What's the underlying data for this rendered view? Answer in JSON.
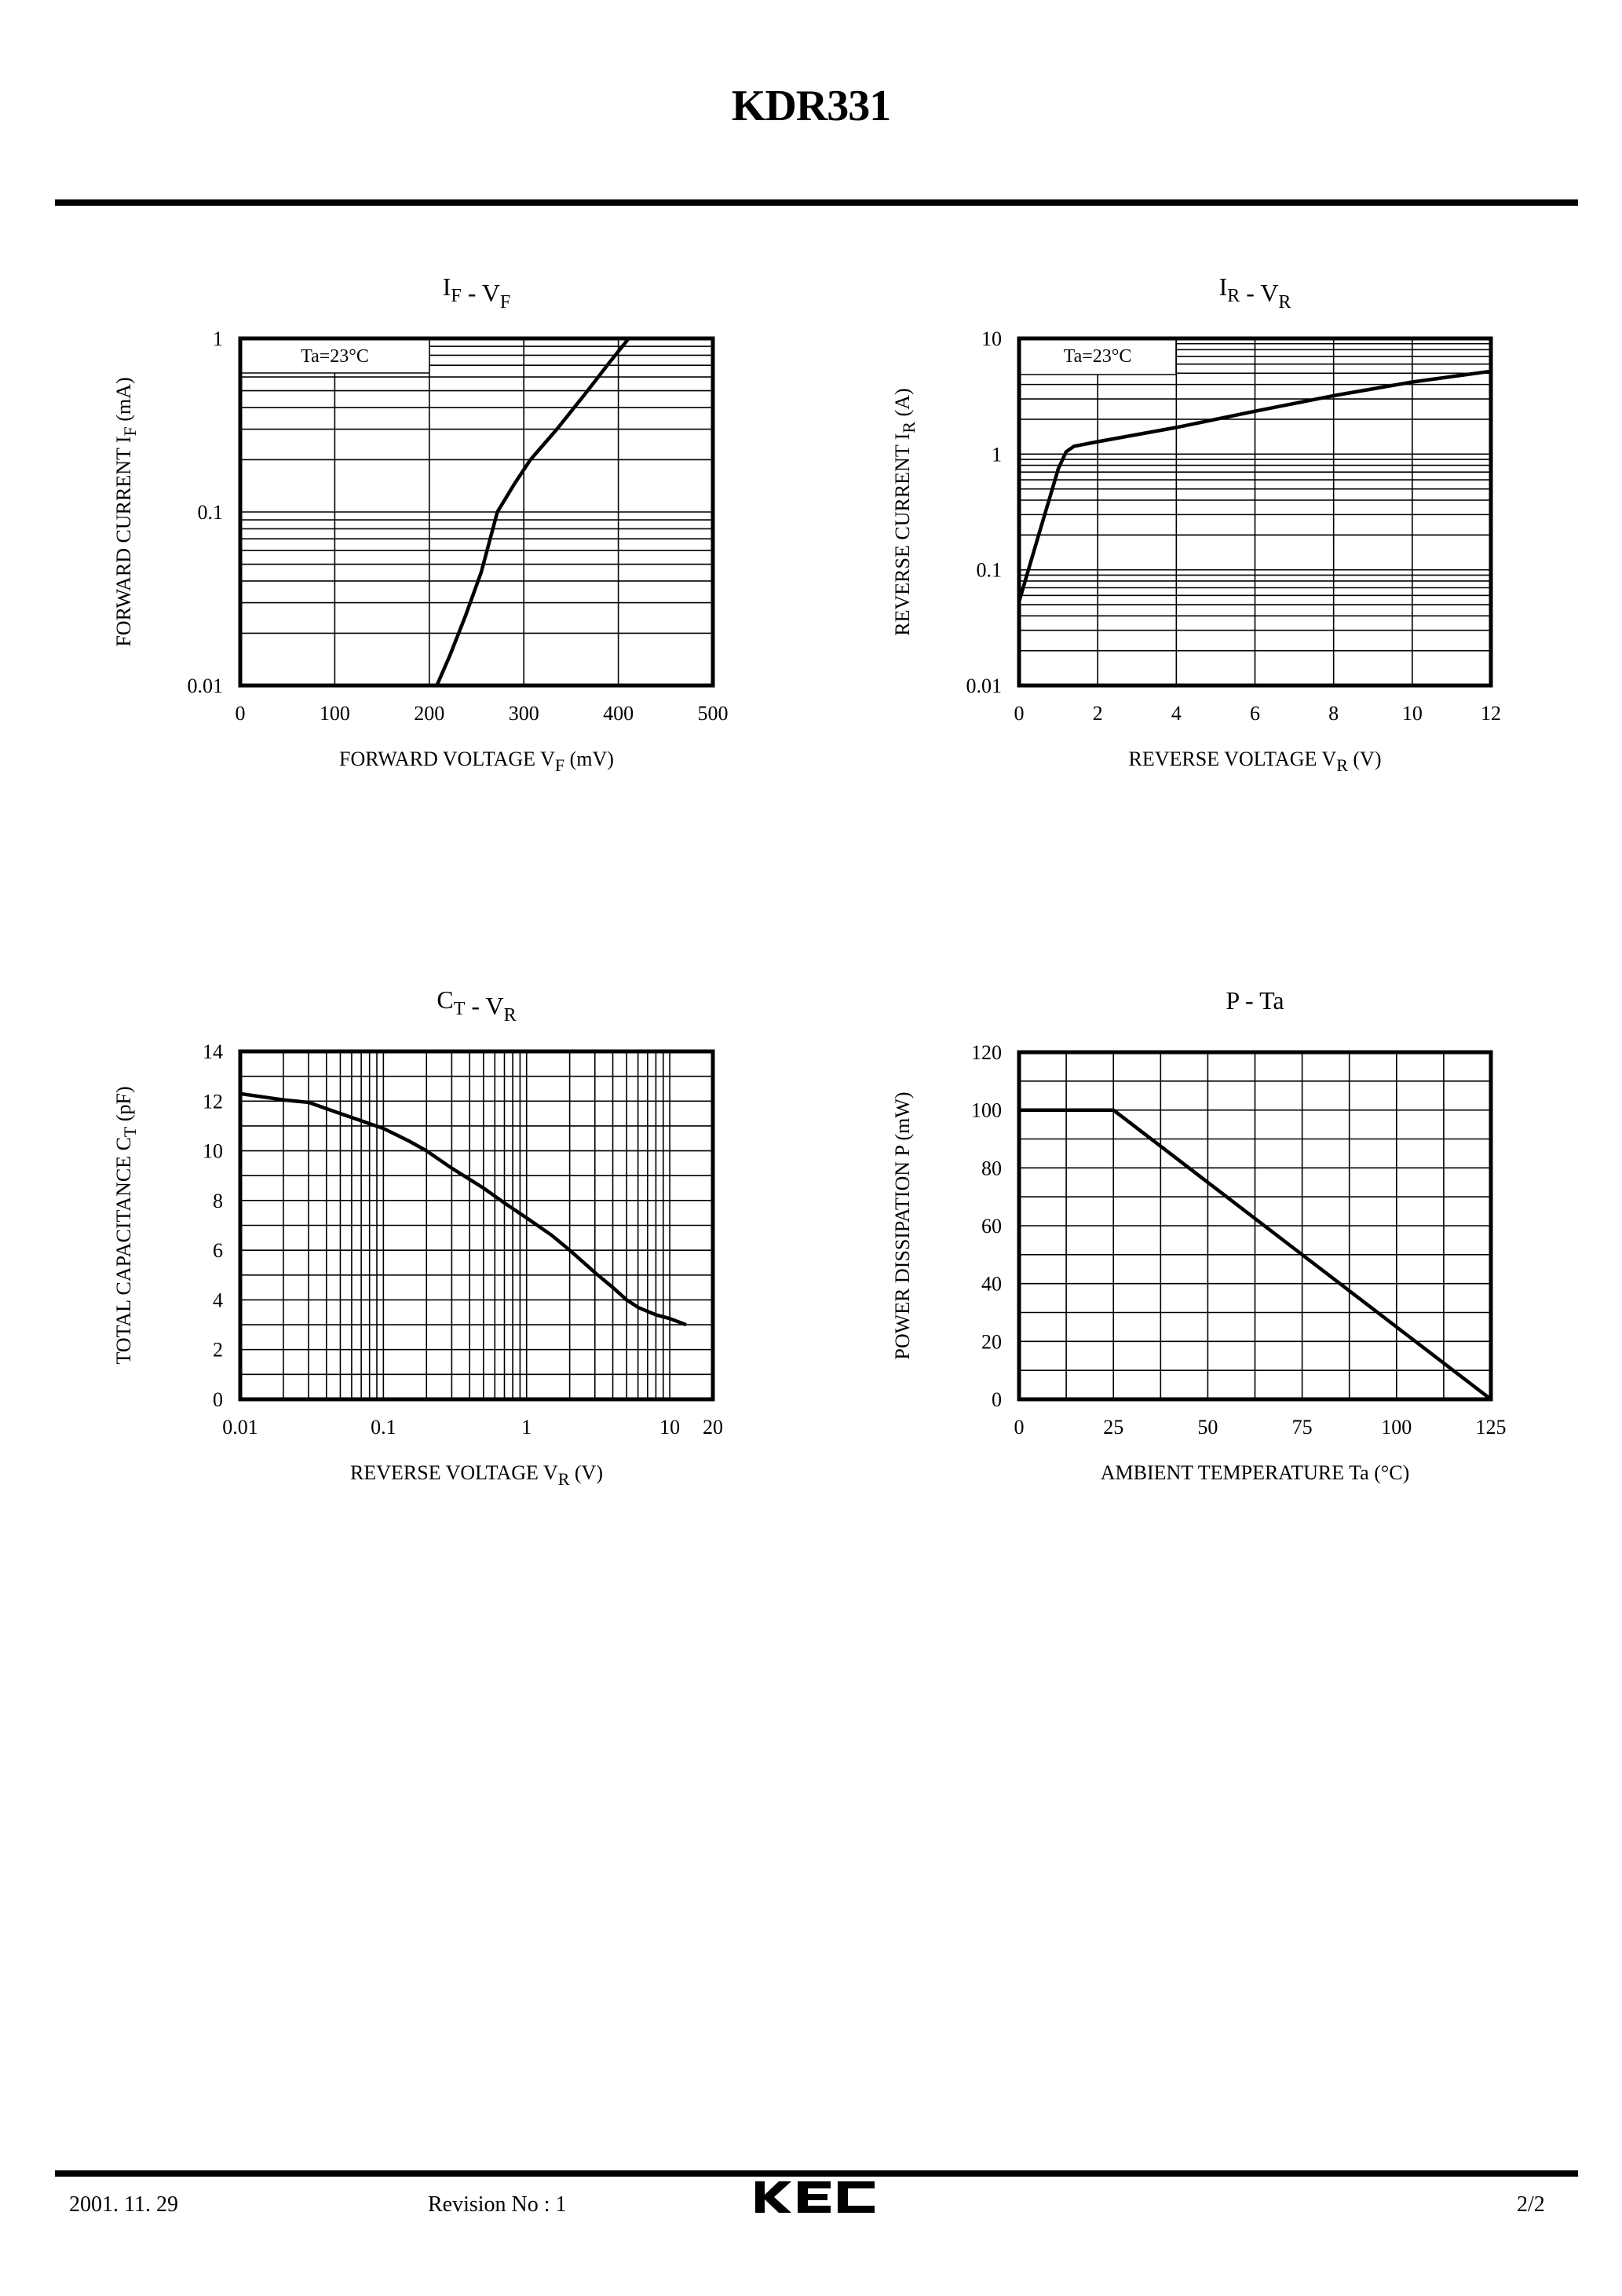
{
  "document": {
    "title": "KDR331",
    "footer": {
      "date": "2001. 11. 29",
      "revision": "Revision No : 1",
      "logo_text": "KEC",
      "page": "2/2"
    }
  },
  "chart_data": [
    {
      "id": "if-vf",
      "type": "line",
      "title": "IF - VF",
      "title_parts": {
        "main1": "I",
        "sub1": "F",
        "sep": " - ",
        "main2": "V",
        "sub2": "F"
      },
      "xlabel": "FORWARD VOLTAGE VF (mV)",
      "xlabel_parts": {
        "pre": "FORWARD VOLTAGE V",
        "sub": "F",
        "post": "  (mV)"
      },
      "ylabel": "FORWARD CURRENT IF (mA)",
      "ylabel_parts": {
        "pre": "FORWARD CURRENT I",
        "sub": "F",
        "post": "  (mA)"
      },
      "xscale": "linear",
      "yscale": "log",
      "xlim": [
        0,
        500
      ],
      "ylim": [
        0.01,
        1
      ],
      "xticks": [
        0,
        100,
        200,
        300,
        400,
        500
      ],
      "xtick_labels": [
        "0",
        "100",
        "200",
        "300",
        "400",
        "500"
      ],
      "yticks": [
        0.01,
        0.1,
        1
      ],
      "ytick_labels": [
        "0.01",
        "0.1",
        "1"
      ],
      "annotation": "Ta=23°C",
      "grid": true,
      "series": [
        {
          "name": "IF",
          "x": [
            208,
            222,
            238,
            255,
            272,
            290,
            307,
            335,
            365,
            390,
            411
          ],
          "y": [
            0.01,
            0.015,
            0.025,
            0.045,
            0.1,
            0.145,
            0.2,
            0.3,
            0.48,
            0.72,
            1.0
          ]
        }
      ]
    },
    {
      "id": "ir-vr",
      "type": "line",
      "title": "IR - VR",
      "title_parts": {
        "main1": "I",
        "sub1": "R",
        "sep": " - ",
        "main2": "V",
        "sub2": "R"
      },
      "xlabel": "REVERSE VOLTAGE VR (V)",
      "xlabel_parts": {
        "pre": "REVERSE VOLTAGE V",
        "sub": "R",
        "post": " (V)"
      },
      "ylabel": "REVERSE CURRENT IR (A)",
      "ylabel_parts": {
        "pre": "REVERSE CURRENT I",
        "sub": "R",
        "post": "  (A)"
      },
      "xscale": "linear",
      "yscale": "log",
      "xlim": [
        0,
        12
      ],
      "ylim": [
        0.01,
        10
      ],
      "xticks": [
        0,
        2,
        4,
        6,
        8,
        10,
        12
      ],
      "xtick_labels": [
        "0",
        "2",
        "4",
        "6",
        "8",
        "10",
        "12"
      ],
      "yticks": [
        0.01,
        0.1,
        1,
        10
      ],
      "ytick_labels": [
        "0.01",
        "0.1",
        "1",
        "10"
      ],
      "annotation": "Ta=23°C",
      "grid": true,
      "series": [
        {
          "name": "IR",
          "x": [
            0,
            0.5,
            1.0,
            1.2,
            1.4,
            2,
            4,
            6,
            8,
            10,
            12
          ],
          "y": [
            0.053,
            0.2,
            0.75,
            1.05,
            1.17,
            1.28,
            1.7,
            2.35,
            3.2,
            4.2,
            5.2
          ]
        }
      ]
    },
    {
      "id": "ct-vr",
      "type": "line",
      "title": "CT - VR",
      "title_parts": {
        "main1": "C",
        "sub1": "T",
        "sep": " - ",
        "main2": "V",
        "sub2": "R"
      },
      "xlabel": "REVERSE VOLTAGE VR (V)",
      "xlabel_parts": {
        "pre": "REVERSE VOLTAGE V",
        "sub": "R",
        "post": " (V)"
      },
      "ylabel": "TOTAL CAPACITANCE CT (pF)",
      "ylabel_parts": {
        "pre": "TOTAL CAPACITANCE C",
        "sub": "T",
        "post": " (pF)"
      },
      "xscale": "log",
      "yscale": "linear",
      "xlim": [
        0.01,
        20
      ],
      "ylim": [
        0,
        14
      ],
      "xticks": [
        0.01,
        0.1,
        1,
        10,
        20
      ],
      "xtick_labels": [
        "0.01",
        "0.1",
        "1",
        "10",
        "20"
      ],
      "yticks": [
        0,
        2,
        4,
        6,
        8,
        10,
        12,
        14
      ],
      "ytick_labels": [
        "0",
        "2",
        "4",
        "6",
        "8",
        "10",
        "12",
        "14"
      ],
      "grid": true,
      "series": [
        {
          "name": "CT",
          "x": [
            0.01,
            0.02,
            0.03,
            0.05,
            0.1,
            0.15,
            0.2,
            0.3,
            0.5,
            0.7,
            1,
            1.5,
            2,
            3,
            4,
            5,
            6,
            8,
            10,
            13
          ],
          "y": [
            12.3,
            12.05,
            11.95,
            11.5,
            10.9,
            10.4,
            10.0,
            9.3,
            8.5,
            7.9,
            7.3,
            6.6,
            6.0,
            5.1,
            4.5,
            4.0,
            3.7,
            3.4,
            3.25,
            3.0
          ]
        }
      ]
    },
    {
      "id": "p-ta",
      "type": "line",
      "title": "P - Ta",
      "title_parts": {
        "main1": "P - Ta",
        "sub1": "",
        "sep": "",
        "main2": "",
        "sub2": ""
      },
      "xlabel": "AMBIENT TEMPERATURE Ta (°C)",
      "xlabel_parts": {
        "pre": "AMBIENT TEMPERATURE Ta (°C)",
        "sub": "",
        "post": ""
      },
      "ylabel": "POWER DISSIPATION P (mW)",
      "ylabel_parts": {
        "pre": "POWER DISSIPATION P  (mW)",
        "sub": "",
        "post": ""
      },
      "xscale": "linear",
      "yscale": "linear",
      "xlim": [
        0,
        125
      ],
      "ylim": [
        0,
        120
      ],
      "xticks": [
        0,
        25,
        50,
        75,
        100,
        125
      ],
      "xtick_labels": [
        "0",
        "25",
        "50",
        "75",
        "100",
        "125"
      ],
      "yticks": [
        0,
        20,
        40,
        60,
        80,
        100,
        120
      ],
      "ytick_labels": [
        "0",
        "20",
        "40",
        "60",
        "80",
        "100",
        "120"
      ],
      "grid": true,
      "series": [
        {
          "name": "P",
          "x": [
            0,
            25,
            125
          ],
          "y": [
            100,
            100,
            0
          ]
        }
      ]
    }
  ]
}
